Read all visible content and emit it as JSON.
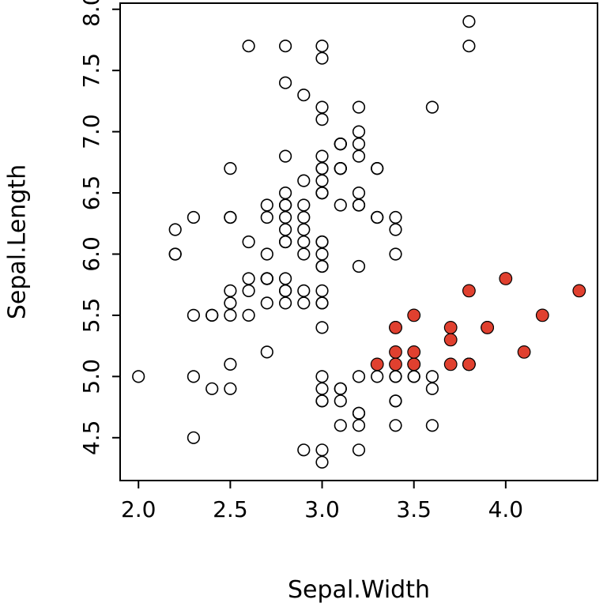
{
  "figure": {
    "background": "#ffffff",
    "border_color": "#000000"
  },
  "chart_data": {
    "type": "scatter",
    "title": "",
    "xlabel": "Sepal.Width",
    "ylabel": "Sepal.Length",
    "xlim": [
      1.9,
      4.5
    ],
    "ylim": [
      4.15,
      8.05
    ],
    "x_tick_labels": [
      "2.0",
      "2.5",
      "3.0",
      "3.5",
      "4.0"
    ],
    "y_tick_labels": [
      "4.5",
      "5.0",
      "5.5",
      "6.0",
      "6.5",
      "7.0",
      "7.5",
      "8.0"
    ],
    "grid": false,
    "legend": "none",
    "series": [
      {
        "name": "unhighlighted",
        "marker": "open-circle",
        "fill": "none",
        "stroke": "#000000",
        "points": [
          [
            3.0,
            4.9
          ],
          [
            3.2,
            4.7
          ],
          [
            3.1,
            4.6
          ],
          [
            3.6,
            5.0
          ],
          [
            3.4,
            4.6
          ],
          [
            3.4,
            5.0
          ],
          [
            2.9,
            4.4
          ],
          [
            3.1,
            4.9
          ],
          [
            3.4,
            4.8
          ],
          [
            3.0,
            4.8
          ],
          [
            3.0,
            4.3
          ],
          [
            3.6,
            4.6
          ],
          [
            3.4,
            4.8
          ],
          [
            3.0,
            5.0
          ],
          [
            3.4,
            5.0
          ],
          [
            3.2,
            4.7
          ],
          [
            3.1,
            4.8
          ],
          [
            3.1,
            4.9
          ],
          [
            3.2,
            5.0
          ],
          [
            3.6,
            4.9
          ],
          [
            3.0,
            4.4
          ],
          [
            3.5,
            5.0
          ],
          [
            2.3,
            4.5
          ],
          [
            3.2,
            4.4
          ],
          [
            3.5,
            5.0
          ],
          [
            3.0,
            4.8
          ],
          [
            3.2,
            4.6
          ],
          [
            3.3,
            5.0
          ],
          [
            3.2,
            7.0
          ],
          [
            3.2,
            6.4
          ],
          [
            3.1,
            6.9
          ],
          [
            2.3,
            5.5
          ],
          [
            2.8,
            6.5
          ],
          [
            2.8,
            5.7
          ],
          [
            3.3,
            6.3
          ],
          [
            2.4,
            4.9
          ],
          [
            2.9,
            6.6
          ],
          [
            2.7,
            5.2
          ],
          [
            2.0,
            5.0
          ],
          [
            3.0,
            5.9
          ],
          [
            2.2,
            6.0
          ],
          [
            2.9,
            6.1
          ],
          [
            2.9,
            5.6
          ],
          [
            3.1,
            6.7
          ],
          [
            3.0,
            5.6
          ],
          [
            2.7,
            5.8
          ],
          [
            2.2,
            6.2
          ],
          [
            2.5,
            5.6
          ],
          [
            3.2,
            5.9
          ],
          [
            2.8,
            6.1
          ],
          [
            2.5,
            6.3
          ],
          [
            2.8,
            6.1
          ],
          [
            2.9,
            6.4
          ],
          [
            3.0,
            6.6
          ],
          [
            2.8,
            6.8
          ],
          [
            3.0,
            6.7
          ],
          [
            2.9,
            6.0
          ],
          [
            2.6,
            5.7
          ],
          [
            2.4,
            5.5
          ],
          [
            2.4,
            5.5
          ],
          [
            2.7,
            5.8
          ],
          [
            2.7,
            6.0
          ],
          [
            3.0,
            5.4
          ],
          [
            3.4,
            6.0
          ],
          [
            3.1,
            6.7
          ],
          [
            2.3,
            6.3
          ],
          [
            3.0,
            5.6
          ],
          [
            2.5,
            5.5
          ],
          [
            2.6,
            5.5
          ],
          [
            3.0,
            6.1
          ],
          [
            2.6,
            5.8
          ],
          [
            2.3,
            5.0
          ],
          [
            2.7,
            5.6
          ],
          [
            3.0,
            5.7
          ],
          [
            2.9,
            5.7
          ],
          [
            2.9,
            6.2
          ],
          [
            2.5,
            5.1
          ],
          [
            2.8,
            5.7
          ],
          [
            3.3,
            6.3
          ],
          [
            2.7,
            5.8
          ],
          [
            3.0,
            7.1
          ],
          [
            2.9,
            6.3
          ],
          [
            3.0,
            6.5
          ],
          [
            3.0,
            7.6
          ],
          [
            2.5,
            4.9
          ],
          [
            2.9,
            7.3
          ],
          [
            2.5,
            6.7
          ],
          [
            3.6,
            7.2
          ],
          [
            3.2,
            6.5
          ],
          [
            2.7,
            6.4
          ],
          [
            3.0,
            6.8
          ],
          [
            2.5,
            5.7
          ],
          [
            2.8,
            5.8
          ],
          [
            3.2,
            6.4
          ],
          [
            3.0,
            6.5
          ],
          [
            3.8,
            7.7
          ],
          [
            2.6,
            7.7
          ],
          [
            2.2,
            6.0
          ],
          [
            3.2,
            6.9
          ],
          [
            2.8,
            5.6
          ],
          [
            2.8,
            7.7
          ],
          [
            2.7,
            6.3
          ],
          [
            3.3,
            6.7
          ],
          [
            3.2,
            7.2
          ],
          [
            2.8,
            6.2
          ],
          [
            3.0,
            6.1
          ],
          [
            2.8,
            6.4
          ],
          [
            3.0,
            7.2
          ],
          [
            2.8,
            7.4
          ],
          [
            3.8,
            7.9
          ],
          [
            2.8,
            6.4
          ],
          [
            2.8,
            6.3
          ],
          [
            2.6,
            6.1
          ],
          [
            3.0,
            7.7
          ],
          [
            3.4,
            6.3
          ],
          [
            3.1,
            6.4
          ],
          [
            3.0,
            6.0
          ],
          [
            3.1,
            6.9
          ],
          [
            3.1,
            6.7
          ],
          [
            3.1,
            6.9
          ],
          [
            2.7,
            5.8
          ],
          [
            3.2,
            6.8
          ],
          [
            3.3,
            6.7
          ],
          [
            3.0,
            6.7
          ],
          [
            2.5,
            6.3
          ],
          [
            3.0,
            6.5
          ],
          [
            3.4,
            6.2
          ],
          [
            3.0,
            5.9
          ]
        ]
      },
      {
        "name": "highlighted",
        "marker": "filled-circle",
        "fill": "#e0402f",
        "stroke": "#000000",
        "points": [
          [
            3.5,
            5.1
          ],
          [
            3.9,
            5.4
          ],
          [
            3.7,
            5.4
          ],
          [
            4.0,
            5.8
          ],
          [
            4.4,
            5.7
          ],
          [
            3.9,
            5.4
          ],
          [
            3.5,
            5.1
          ],
          [
            3.8,
            5.7
          ],
          [
            3.8,
            5.1
          ],
          [
            3.4,
            5.4
          ],
          [
            3.7,
            5.1
          ],
          [
            3.3,
            5.1
          ],
          [
            3.5,
            5.2
          ],
          [
            3.4,
            5.2
          ],
          [
            3.4,
            5.4
          ],
          [
            4.1,
            5.2
          ],
          [
            4.2,
            5.5
          ],
          [
            3.5,
            5.5
          ],
          [
            3.4,
            5.1
          ],
          [
            3.8,
            5.1
          ],
          [
            3.8,
            5.1
          ],
          [
            3.7,
            5.3
          ]
        ]
      }
    ]
  }
}
